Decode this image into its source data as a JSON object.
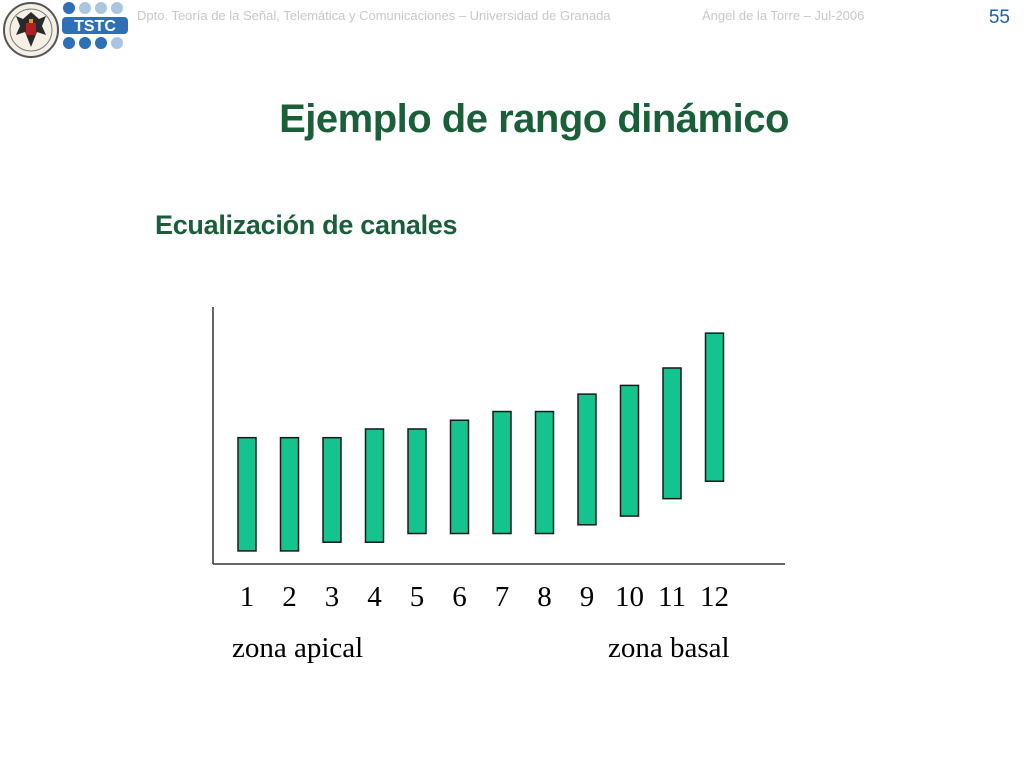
{
  "header": {
    "department": "Dpto. Teoría de la Señal, Telemática y Comunicaciones – Universidad de Granada",
    "author": "Ángel de la Torre – Jul-2006",
    "page_number": "55",
    "logo_tstc_text": "TSTC"
  },
  "slide": {
    "title": "Ejemplo de rango dinámico",
    "subtitle": "Ecualización de canales"
  },
  "colors": {
    "title": "#1b5f3a",
    "bar_fill": "#14c38e",
    "bar_stroke": "#1a1a1a",
    "header_text": "#c8c8c8",
    "page_number": "#1f5fa8"
  },
  "chart_data": {
    "type": "bar",
    "subtype": "floating-range",
    "categories": [
      "1",
      "2",
      "3",
      "4",
      "5",
      "6",
      "7",
      "8",
      "9",
      "10",
      "11",
      "12"
    ],
    "ranges": [
      {
        "low": 0.0,
        "high": 13.0
      },
      {
        "low": 0.0,
        "high": 13.0
      },
      {
        "low": 1.0,
        "high": 13.0
      },
      {
        "low": 1.0,
        "high": 14.0
      },
      {
        "low": 2.0,
        "high": 14.0
      },
      {
        "low": 2.0,
        "high": 15.0
      },
      {
        "low": 2.0,
        "high": 16.0
      },
      {
        "low": 2.0,
        "high": 16.0
      },
      {
        "low": 3.0,
        "high": 18.0
      },
      {
        "low": 4.0,
        "high": 19.0
      },
      {
        "low": 6.0,
        "high": 21.0
      },
      {
        "low": 8.0,
        "high": 25.0
      }
    ],
    "ylim": [
      -1.5,
      28.0
    ],
    "annotations": {
      "left": "zona apical",
      "right": "zona basal"
    },
    "title": "",
    "xlabel": "",
    "ylabel": "",
    "grid": false,
    "legend": "none"
  }
}
